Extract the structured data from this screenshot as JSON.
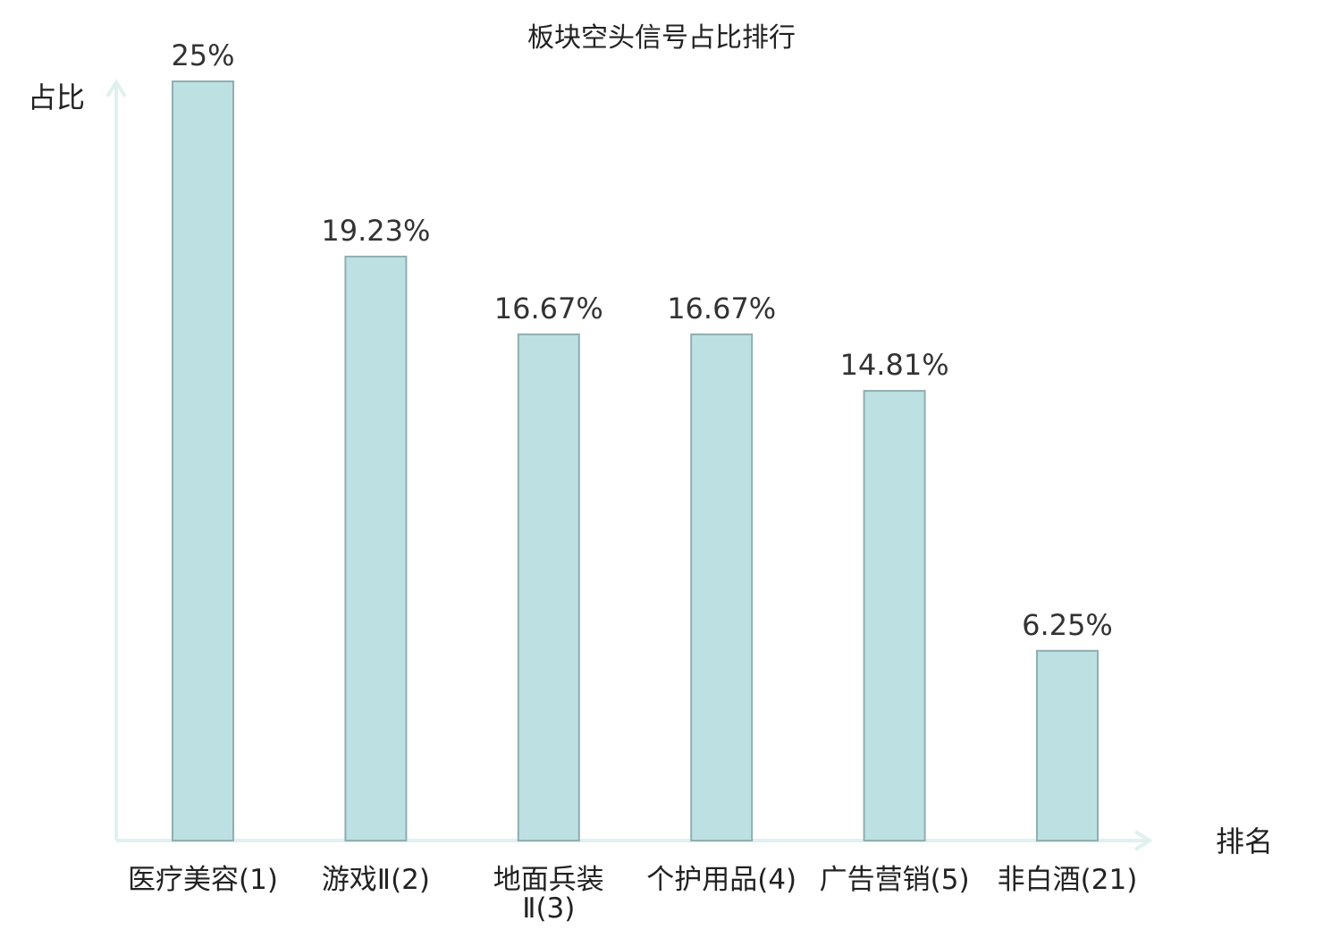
{
  "chart_data": {
    "type": "bar",
    "title": "板块空头信号占比排行",
    "ylabel": "占比",
    "xlabel": "排名",
    "ylim": [
      0,
      25
    ],
    "categories": [
      {
        "lines": [
          "医疗美容(1)"
        ],
        "highlight": false
      },
      {
        "lines": [
          "游戏Ⅱ(2)"
        ],
        "highlight": false
      },
      {
        "lines": [
          "地面兵装",
          "Ⅱ(3)"
        ],
        "highlight": false
      },
      {
        "lines": [
          "个护用品(4)"
        ],
        "highlight": false
      },
      {
        "lines": [
          "广告营销(5)"
        ],
        "highlight": false
      },
      {
        "lines": [
          "非白酒(21)"
        ],
        "highlight": true
      }
    ],
    "values": [
      25,
      19.23,
      16.67,
      16.67,
      14.81,
      6.25
    ],
    "value_labels": [
      "25%",
      "19.23%",
      "16.67%",
      "16.67%",
      "14.81%",
      "6.25%"
    ],
    "grid": false,
    "colors": {
      "bar_fill": "#bde0e3",
      "bar_stroke": "#8faeb1",
      "axis": "#dff1ef",
      "highlight_text": "#e02020",
      "text": "#222222"
    }
  }
}
